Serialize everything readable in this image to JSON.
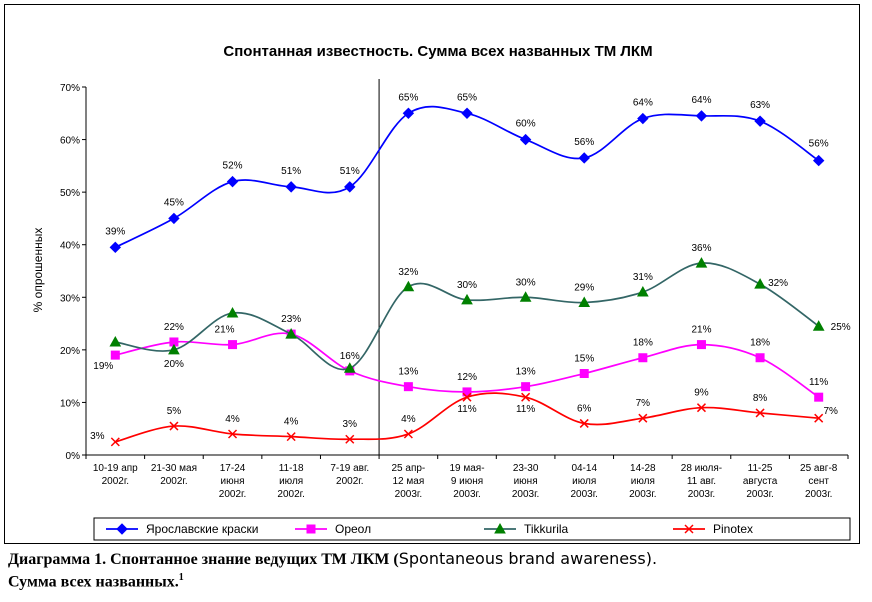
{
  "chart_data": {
    "type": "line",
    "title": "Спонтанная известность. Сумма всех названных ТМ ЛКМ",
    "ylabel": "% опрошенных",
    "xlabel": "",
    "ylim": [
      0,
      70
    ],
    "yticks": [
      "0%",
      "10%",
      "20%",
      "30%",
      "40%",
      "50%",
      "60%",
      "70%"
    ],
    "categories": [
      [
        "10-19 апр",
        "2002г."
      ],
      [
        "21-30 мая",
        "2002г."
      ],
      [
        "17-24",
        "июня",
        "2002г."
      ],
      [
        "11-18",
        "июля",
        "2002г."
      ],
      [
        "7-19 авг.",
        "2002г."
      ],
      [
        "25 апр-",
        "12 мая",
        "2003г."
      ],
      [
        "19 мая-",
        "9 июня",
        "2003г."
      ],
      [
        "23-30",
        "июня",
        "2003г."
      ],
      [
        "04-14",
        "июля",
        "2003г."
      ],
      [
        "14-28",
        "июля",
        "2003г."
      ],
      [
        "28 июля-",
        "11 авг.",
        "2003г."
      ],
      [
        "11-25",
        "августа",
        "2003г."
      ],
      [
        "25 авг-8",
        "сент",
        "2003г."
      ]
    ],
    "divider_after_index": 4,
    "grid": false,
    "legend_position": "bottom",
    "series": [
      {
        "name": "Ярославские краски",
        "color": "#0000ff",
        "marker": "diamond",
        "values": [
          39.5,
          45,
          52,
          51,
          51,
          65,
          65,
          60,
          56.5,
          64,
          64.5,
          63.5,
          56
        ],
        "labels": [
          "39%",
          "45%",
          "52%",
          "51%",
          "51%",
          "65%",
          "65%",
          "60%",
          "56%",
          "64%",
          "64%",
          "63%",
          "56%"
        ]
      },
      {
        "name": "Ореол",
        "color": "#ff00ff",
        "marker": "square",
        "values": [
          19,
          21.5,
          21,
          23,
          16,
          13,
          12,
          13,
          15.5,
          18.5,
          21,
          18.5,
          11
        ],
        "labels": [
          "19%",
          "22%",
          "21%",
          "23%",
          "16%",
          "13%",
          "12%",
          "13%",
          "15%",
          "18%",
          "21%",
          "18%",
          "11%"
        ]
      },
      {
        "name": "Tikkurila",
        "color": "#008000",
        "line_color": "#336666",
        "marker": "triangle",
        "values": [
          21.5,
          20,
          27,
          23,
          16.5,
          32,
          29.5,
          30,
          29,
          31,
          36.5,
          32.5,
          24.5
        ],
        "labels": [
          "",
          "20%",
          "",
          "",
          "",
          "32%",
          "30%",
          "30%",
          "29%",
          "31%",
          "36%",
          "32%",
          "25%"
        ]
      },
      {
        "name": "Pinotex",
        "color": "#ff0000",
        "marker": "x",
        "values": [
          2.5,
          5.5,
          4,
          3.5,
          3,
          4,
          11,
          11,
          6,
          7,
          9,
          8,
          7
        ],
        "labels": [
          "3%",
          "5%",
          "4%",
          "4%",
          "3%",
          "4%",
          "11%",
          "11%",
          "6%",
          "7%",
          "9%",
          "8%",
          "7%"
        ]
      }
    ]
  },
  "caption": {
    "line1_bold": "Диаграмма 1. Спонтанное знание ведущих ТМ ЛКМ (",
    "line1_sans": "Spontaneous brand awareness",
    "line1_tail": ").",
    "line2": "Сумма всех названных.",
    "line2_sup": "1"
  }
}
